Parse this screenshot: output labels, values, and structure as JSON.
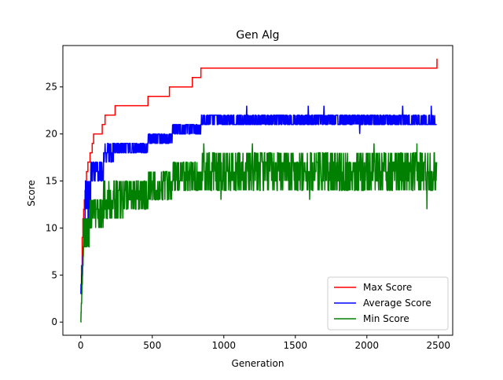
{
  "chart_data": {
    "type": "line",
    "title": "Gen Alg",
    "xlabel": "Generation",
    "ylabel": "Score",
    "xlim": [
      -125,
      2600
    ],
    "ylim": [
      -1.4,
      29.4
    ],
    "xticks": [
      0,
      500,
      1000,
      1500,
      2000,
      2500
    ],
    "yticks": [
      0,
      5,
      10,
      15,
      20,
      25
    ],
    "grid": false,
    "legend_position": "lower right",
    "series": [
      {
        "name": "Max Score",
        "color": "#ff0000",
        "style": "step",
        "x": [
          0,
          5,
          10,
          15,
          20,
          25,
          30,
          35,
          40,
          45,
          50,
          60,
          65,
          80,
          90,
          150,
          170,
          240,
          470,
          620,
          780,
          840,
          2480,
          2480,
          2490
        ],
        "y": [
          3,
          6,
          9,
          11,
          12,
          13,
          14,
          15,
          16,
          16,
          17,
          17,
          18,
          19,
          20,
          21,
          22,
          23,
          24,
          25,
          26,
          27,
          27,
          27,
          28
        ]
      },
      {
        "name": "Average Score",
        "color": "#0000ff",
        "style": "noisy",
        "bands": [
          {
            "x0": 0,
            "x1": 30,
            "lo": 3,
            "hi": 11
          },
          {
            "x0": 30,
            "x1": 70,
            "lo": 11,
            "hi": 15
          },
          {
            "x0": 70,
            "x1": 160,
            "lo": 15,
            "hi": 17
          },
          {
            "x0": 160,
            "x1": 240,
            "lo": 17,
            "hi": 19
          },
          {
            "x0": 240,
            "x1": 470,
            "lo": 18,
            "hi": 19
          },
          {
            "x0": 470,
            "x1": 640,
            "lo": 19,
            "hi": 20
          },
          {
            "x0": 640,
            "x1": 840,
            "lo": 20,
            "hi": 21
          },
          {
            "x0": 840,
            "x1": 2490,
            "lo": 21,
            "hi": 22
          }
        ],
        "spikes": [
          {
            "x": 1160,
            "y": 23
          },
          {
            "x": 1590,
            "y": 23
          },
          {
            "x": 1700,
            "y": 23
          },
          {
            "x": 1950,
            "y": 20
          },
          {
            "x": 2250,
            "y": 23
          },
          {
            "x": 2450,
            "y": 23
          }
        ]
      },
      {
        "name": "Min Score",
        "color": "#008000",
        "style": "noisy",
        "bands": [
          {
            "x0": 0,
            "x1": 20,
            "lo": 0,
            "hi": 8
          },
          {
            "x0": 20,
            "x1": 60,
            "lo": 8,
            "hi": 11
          },
          {
            "x0": 60,
            "x1": 160,
            "lo": 10,
            "hi": 13
          },
          {
            "x0": 160,
            "x1": 300,
            "lo": 11,
            "hi": 15
          },
          {
            "x0": 300,
            "x1": 470,
            "lo": 12,
            "hi": 15
          },
          {
            "x0": 470,
            "x1": 640,
            "lo": 13,
            "hi": 16
          },
          {
            "x0": 640,
            "x1": 840,
            "lo": 14,
            "hi": 17
          },
          {
            "x0": 840,
            "x1": 2490,
            "lo": 14,
            "hi": 18
          }
        ],
        "spikes": [
          {
            "x": 860,
            "y": 19
          },
          {
            "x": 980,
            "y": 13
          },
          {
            "x": 1200,
            "y": 19
          },
          {
            "x": 1600,
            "y": 13
          },
          {
            "x": 2050,
            "y": 19
          },
          {
            "x": 2350,
            "y": 19
          },
          {
            "x": 2420,
            "y": 12
          }
        ]
      }
    ]
  }
}
